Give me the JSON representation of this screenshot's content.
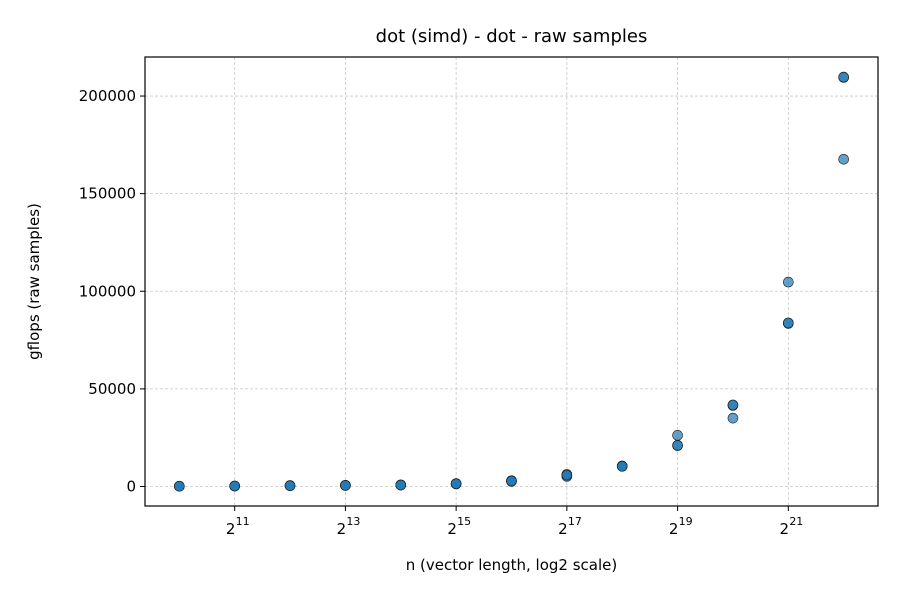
{
  "chart_data": {
    "type": "scatter",
    "title": "dot (simd) - dot - raw samples",
    "xlabel": "n (vector length, log2 scale)",
    "ylabel": "gflops (raw samples)",
    "x_scale": "log2",
    "xlim": [
      1024,
      4194304
    ],
    "ylim": [
      -10000,
      220000
    ],
    "grid": true,
    "x_tick_labels": [
      {
        "base": "2",
        "exp": "11",
        "value": 2048
      },
      {
        "base": "2",
        "exp": "13",
        "value": 8192
      },
      {
        "base": "2",
        "exp": "15",
        "value": 32768
      },
      {
        "base": "2",
        "exp": "17",
        "value": 131072
      },
      {
        "base": "2",
        "exp": "19",
        "value": 524288
      },
      {
        "base": "2",
        "exp": "21",
        "value": 2097152
      }
    ],
    "y_tick_labels": [
      "0",
      "50000",
      "100000",
      "150000",
      "200000"
    ],
    "y_ticks": [
      0,
      50000,
      100000,
      150000,
      200000
    ],
    "points": [
      {
        "x": 1024,
        "y": 100
      },
      {
        "x": 1024,
        "y": 150
      },
      {
        "x": 1024,
        "y": 120
      },
      {
        "x": 2048,
        "y": 200
      },
      {
        "x": 2048,
        "y": 250
      },
      {
        "x": 2048,
        "y": 220
      },
      {
        "x": 4096,
        "y": 400
      },
      {
        "x": 4096,
        "y": 450
      },
      {
        "x": 4096,
        "y": 420
      },
      {
        "x": 8192,
        "y": 500
      },
      {
        "x": 8192,
        "y": 600
      },
      {
        "x": 8192,
        "y": 550
      },
      {
        "x": 16384,
        "y": 700
      },
      {
        "x": 16384,
        "y": 800
      },
      {
        "x": 16384,
        "y": 750
      },
      {
        "x": 32768,
        "y": 1300
      },
      {
        "x": 32768,
        "y": 1500
      },
      {
        "x": 32768,
        "y": 1400
      },
      {
        "x": 65536,
        "y": 2600
      },
      {
        "x": 65536,
        "y": 3000
      },
      {
        "x": 65536,
        "y": 2800
      },
      {
        "x": 131072,
        "y": 5200
      },
      {
        "x": 131072,
        "y": 6200
      },
      {
        "x": 131072,
        "y": 5800
      },
      {
        "x": 262144,
        "y": 10400
      },
      {
        "x": 262144,
        "y": 10500
      },
      {
        "x": 262144,
        "y": 10300
      },
      {
        "x": 524288,
        "y": 20900
      },
      {
        "x": 524288,
        "y": 21100
      },
      {
        "x": 524288,
        "y": 26200
      },
      {
        "x": 1048576,
        "y": 41500
      },
      {
        "x": 1048576,
        "y": 41800
      },
      {
        "x": 1048576,
        "y": 35000
      },
      {
        "x": 2097152,
        "y": 83500
      },
      {
        "x": 2097152,
        "y": 83800
      },
      {
        "x": 2097152,
        "y": 104700
      },
      {
        "x": 4194304,
        "y": 209500
      },
      {
        "x": 4194304,
        "y": 209700
      },
      {
        "x": 4194304,
        "y": 167600
      }
    ],
    "point_color": "#1f77b4"
  }
}
